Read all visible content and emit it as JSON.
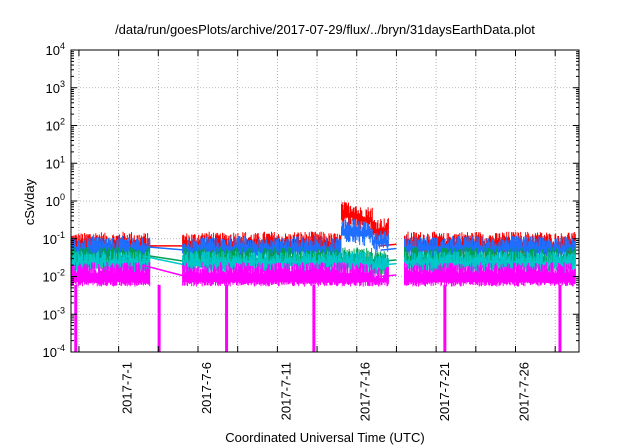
{
  "chart_data": {
    "type": "line",
    "title": "/data/run/goesPlots/archive/2017-07-29/flux/../bryn/31daysEarthData.plot",
    "xlabel": "Coordinated Universal Time (UTC)",
    "ylabel": "cSv/day",
    "yscale": "log",
    "ylim": [
      0.0001,
      10000
    ],
    "xlim": [
      "2017-06-28",
      "2017-07-30"
    ],
    "grid": true,
    "legend": "none",
    "y_ticks": [
      {
        "base": "10",
        "exp": "-4",
        "value": 0.0001
      },
      {
        "base": "10",
        "exp": "-3",
        "value": 0.001
      },
      {
        "base": "10",
        "exp": "-2",
        "value": 0.01
      },
      {
        "base": "10",
        "exp": "-1",
        "value": 0.1
      },
      {
        "base": "10",
        "exp": "0",
        "value": 1
      },
      {
        "base": "10",
        "exp": "1",
        "value": 10
      },
      {
        "base": "10",
        "exp": "2",
        "value": 100
      },
      {
        "base": "10",
        "exp": "3",
        "value": 1000
      },
      {
        "base": "10",
        "exp": "4",
        "value": 10000
      }
    ],
    "x_ticks": [
      "2017-7-1",
      "2017-7-6",
      "2017-7-11",
      "2017-7-16",
      "2017-7-21",
      "2017-7-26"
    ],
    "series": [
      {
        "color": "#ff0000",
        "x": [
          "2017-06-28",
          "2017-06-29",
          "2017-06-30",
          "2017-07-01",
          "2017-07-02",
          "2017-07-03",
          "2017-07-04",
          "2017-07-05",
          "2017-07-06",
          "2017-07-07",
          "2017-07-08",
          "2017-07-09",
          "2017-07-10",
          "2017-07-11",
          "2017-07-12",
          "2017-07-13",
          "2017-07-14",
          "2017-07-15",
          "2017-07-16",
          "2017-07-17",
          "2017-07-18",
          "2017-07-19",
          "2017-07-20",
          "2017-07-21",
          "2017-07-22",
          "2017-07-23",
          "2017-07-24",
          "2017-07-25",
          "2017-07-26",
          "2017-07-27",
          "2017-07-28",
          "2017-07-29",
          "2017-07-30"
        ],
        "y": [
          0.12,
          0.13,
          0.12,
          0.13,
          0.12,
          null,
          null,
          0.12,
          0.13,
          0.12,
          0.13,
          0.12,
          0.13,
          0.12,
          0.13,
          0.13,
          0.12,
          0.8,
          0.6,
          0.3,
          null,
          0.13,
          0.13,
          0.12,
          0.13,
          0.13,
          0.12,
          0.13,
          0.13,
          0.13,
          0.12,
          0.13,
          0.13
        ]
      },
      {
        "color": "#1e6eff",
        "x": [
          "2017-06-28",
          "2017-06-29",
          "2017-06-30",
          "2017-07-01",
          "2017-07-02",
          "2017-07-03",
          "2017-07-04",
          "2017-07-05",
          "2017-07-06",
          "2017-07-07",
          "2017-07-08",
          "2017-07-09",
          "2017-07-10",
          "2017-07-11",
          "2017-07-12",
          "2017-07-13",
          "2017-07-14",
          "2017-07-15",
          "2017-07-16",
          "2017-07-17",
          "2017-07-18",
          "2017-07-19",
          "2017-07-20",
          "2017-07-21",
          "2017-07-22",
          "2017-07-23",
          "2017-07-24",
          "2017-07-25",
          "2017-07-26",
          "2017-07-27",
          "2017-07-28",
          "2017-07-29",
          "2017-07-30"
        ],
        "y": [
          0.09,
          0.1,
          0.09,
          0.1,
          0.09,
          null,
          null,
          0.09,
          0.1,
          0.09,
          0.1,
          0.09,
          0.1,
          0.09,
          0.1,
          0.1,
          0.09,
          0.3,
          0.25,
          0.15,
          null,
          0.1,
          0.1,
          0.09,
          0.1,
          0.1,
          0.09,
          0.1,
          0.1,
          0.1,
          0.09,
          0.1,
          0.1
        ]
      },
      {
        "color": "#00a050",
        "x": [
          "2017-06-28",
          "2017-06-29",
          "2017-06-30",
          "2017-07-01",
          "2017-07-02",
          "2017-07-03",
          "2017-07-04",
          "2017-07-05",
          "2017-07-06",
          "2017-07-07",
          "2017-07-08",
          "2017-07-09",
          "2017-07-10",
          "2017-07-11",
          "2017-07-12",
          "2017-07-13",
          "2017-07-14",
          "2017-07-15",
          "2017-07-16",
          "2017-07-17",
          "2017-07-18",
          "2017-07-19",
          "2017-07-20",
          "2017-07-21",
          "2017-07-22",
          "2017-07-23",
          "2017-07-24",
          "2017-07-25",
          "2017-07-26",
          "2017-07-27",
          "2017-07-28",
          "2017-07-29",
          "2017-07-30"
        ],
        "y": [
          0.05,
          0.05,
          0.05,
          0.05,
          0.05,
          null,
          null,
          0.05,
          0.05,
          0.05,
          0.05,
          0.05,
          0.05,
          0.05,
          0.05,
          0.05,
          0.05,
          0.05,
          0.05,
          0.04,
          null,
          0.05,
          0.05,
          0.05,
          0.05,
          0.05,
          0.05,
          0.05,
          0.05,
          0.05,
          0.05,
          0.05,
          0.05
        ]
      },
      {
        "color": "#00c8c8",
        "x": [
          "2017-06-28",
          "2017-06-29",
          "2017-06-30",
          "2017-07-01",
          "2017-07-02",
          "2017-07-03",
          "2017-07-04",
          "2017-07-05",
          "2017-07-06",
          "2017-07-07",
          "2017-07-08",
          "2017-07-09",
          "2017-07-10",
          "2017-07-11",
          "2017-07-12",
          "2017-07-13",
          "2017-07-14",
          "2017-07-15",
          "2017-07-16",
          "2017-07-17",
          "2017-07-18",
          "2017-07-19",
          "2017-07-20",
          "2017-07-21",
          "2017-07-22",
          "2017-07-23",
          "2017-07-24",
          "2017-07-25",
          "2017-07-26",
          "2017-07-27",
          "2017-07-28",
          "2017-07-29",
          "2017-07-30"
        ],
        "y": [
          0.04,
          0.04,
          0.04,
          0.04,
          0.04,
          null,
          null,
          0.04,
          0.04,
          0.04,
          0.04,
          0.04,
          0.04,
          0.04,
          0.04,
          0.04,
          0.04,
          0.04,
          0.04,
          0.035,
          null,
          0.04,
          0.04,
          0.04,
          0.04,
          0.04,
          0.04,
          0.04,
          0.04,
          0.04,
          0.04,
          0.04,
          0.04
        ]
      },
      {
        "color": "#ff00ff",
        "x": [
          "2017-06-28",
          "2017-06-29",
          "2017-06-30",
          "2017-07-01",
          "2017-07-02",
          "2017-07-03",
          "2017-07-04",
          "2017-07-05",
          "2017-07-06",
          "2017-07-07",
          "2017-07-08",
          "2017-07-09",
          "2017-07-10",
          "2017-07-11",
          "2017-07-12",
          "2017-07-13",
          "2017-07-14",
          "2017-07-15",
          "2017-07-16",
          "2017-07-17",
          "2017-07-18",
          "2017-07-19",
          "2017-07-20",
          "2017-07-21",
          "2017-07-22",
          "2017-07-23",
          "2017-07-24",
          "2017-07-25",
          "2017-07-26",
          "2017-07-27",
          "2017-07-28",
          "2017-07-29",
          "2017-07-30"
        ],
        "y": [
          0.02,
          0.02,
          0.02,
          0.02,
          0.02,
          null,
          null,
          0.02,
          0.02,
          0.02,
          0.02,
          0.02,
          0.02,
          0.02,
          0.02,
          0.02,
          0.02,
          0.02,
          0.02,
          0.015,
          null,
          0.02,
          0.02,
          0.02,
          0.02,
          0.02,
          0.02,
          0.02,
          0.02,
          0.02,
          0.02,
          0.02,
          0.02
        ],
        "low": 0.006,
        "dropouts": [
          "2017-06-28",
          "2017-07-03",
          "2017-07-07",
          "2017-07-13",
          "2017-07-21",
          "2017-07-28"
        ]
      }
    ]
  }
}
